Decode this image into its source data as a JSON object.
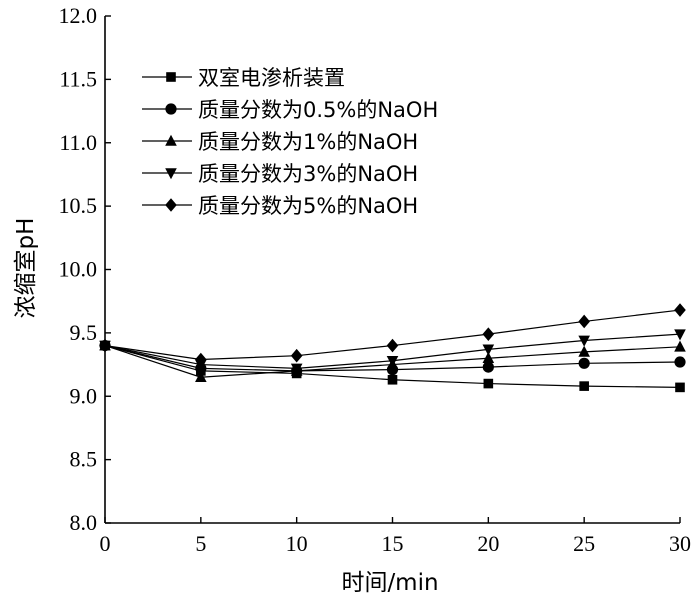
{
  "chart_data": {
    "type": "line",
    "xlabel": "时间/min",
    "ylabel": "浓缩室pH",
    "xlim": [
      0,
      30
    ],
    "ylim": [
      8.0,
      12.0
    ],
    "x": [
      0,
      5,
      10,
      15,
      20,
      25,
      30
    ],
    "x_ticks": [
      "0",
      "5",
      "10",
      "15",
      "20",
      "25",
      "30"
    ],
    "y_ticks": [
      "8.0",
      "8.5",
      "9.0",
      "9.5",
      "10.0",
      "10.5",
      "11.0",
      "11.5",
      "12.0"
    ],
    "grid": false,
    "legend_position": "top-left",
    "series": [
      {
        "name": "双室电渗析装置",
        "marker": "square",
        "values": [
          9.4,
          9.2,
          9.18,
          9.13,
          9.1,
          9.08,
          9.07
        ]
      },
      {
        "name": "质量分数为0.5%的NaOH",
        "marker": "circle",
        "values": [
          9.4,
          9.22,
          9.2,
          9.21,
          9.23,
          9.26,
          9.27
        ]
      },
      {
        "name": "质量分数为1%的NaOH",
        "marker": "triangle-up",
        "values": [
          9.4,
          9.15,
          9.2,
          9.25,
          9.3,
          9.35,
          9.39
        ]
      },
      {
        "name": "质量分数为3%的NaOH",
        "marker": "triangle-down",
        "values": [
          9.4,
          9.25,
          9.22,
          9.28,
          9.37,
          9.44,
          9.49
        ]
      },
      {
        "name": "质量分数为5%的NaOH",
        "marker": "diamond",
        "values": [
          9.4,
          9.29,
          9.32,
          9.4,
          9.49,
          9.59,
          9.68
        ]
      }
    ]
  }
}
